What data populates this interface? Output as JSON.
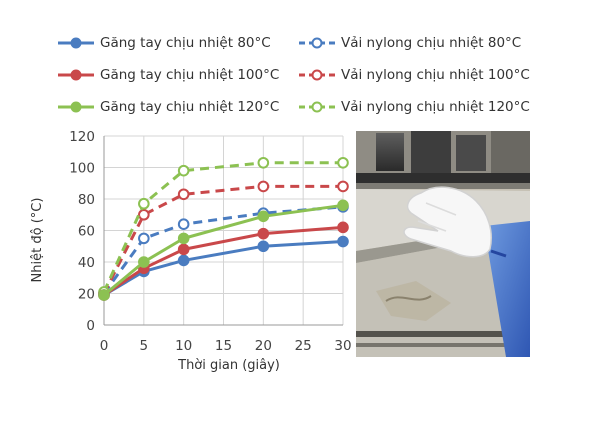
{
  "chart_data": {
    "type": "line",
    "xlabel": "Thời gian (giây)",
    "ylabel": "Nhiệt độ (°C)",
    "xlim": [
      0,
      30
    ],
    "ylim": [
      0,
      120
    ],
    "xticks": [
      0,
      5,
      10,
      15,
      20,
      25,
      30
    ],
    "yticks": [
      0,
      20,
      40,
      60,
      80,
      100,
      120
    ],
    "grid": true,
    "legend_position": "top",
    "series": [
      {
        "name": "Găng tay chịu nhiệt 80°C",
        "color": "#4a7cc0",
        "style": "solid",
        "marker": "filled",
        "x": [
          0,
          5,
          10,
          20,
          30
        ],
        "y": [
          19,
          34,
          41,
          50,
          53
        ]
      },
      {
        "name": "Vải nylong chịu nhiệt 80°C",
        "color": "#4a7cc0",
        "style": "dashed",
        "marker": "open",
        "x": [
          0,
          5,
          10,
          20,
          30
        ],
        "y": [
          20,
          55,
          64,
          71,
          75
        ]
      },
      {
        "name": "Găng tay chịu nhiệt 100°C",
        "color": "#c9484a",
        "style": "solid",
        "marker": "filled",
        "x": [
          0,
          5,
          10,
          20,
          30
        ],
        "y": [
          19,
          36,
          48,
          58,
          62
        ]
      },
      {
        "name": "Vải nylong chịu nhiệt 100°C",
        "color": "#c9484a",
        "style": "dashed",
        "marker": "open",
        "x": [
          0,
          5,
          10,
          20,
          30
        ],
        "y": [
          20,
          70,
          83,
          88,
          88
        ]
      },
      {
        "name": "Găng tay chịu nhiệt 120°C",
        "color": "#8cc152",
        "style": "solid",
        "marker": "filled",
        "x": [
          0,
          5,
          10,
          20,
          30
        ],
        "y": [
          19,
          40,
          55,
          69,
          76
        ]
      },
      {
        "name": "Vải nylong chịu nhiệt 120°C",
        "color": "#8cc152",
        "style": "dashed",
        "marker": "open",
        "x": [
          0,
          5,
          10,
          20,
          30
        ],
        "y": [
          21,
          77,
          98,
          103,
          103
        ]
      }
    ]
  },
  "legend_order": [
    0,
    1,
    2,
    3,
    4,
    5
  ],
  "colors": {
    "grid": "#d4d4d4",
    "axis": "#999999"
  },
  "photo": {
    "content": "gloved-hand-on-heat-press-photo"
  }
}
